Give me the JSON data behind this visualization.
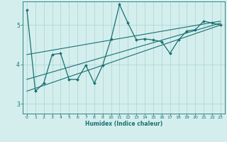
{
  "xlabel": "Humidex (Indice chaleur)",
  "bg_color": "#d4eeee",
  "line_color": "#1a7070",
  "grid_color": "#a8d4d4",
  "xlim": [
    -0.5,
    23.5
  ],
  "ylim": [
    2.75,
    5.6
  ],
  "yticks": [
    3,
    4,
    5
  ],
  "xticks": [
    0,
    1,
    2,
    3,
    4,
    5,
    6,
    7,
    8,
    9,
    10,
    11,
    12,
    13,
    14,
    15,
    16,
    17,
    18,
    19,
    20,
    21,
    22,
    23
  ],
  "line1_x": [
    0,
    1,
    2,
    3,
    4,
    5,
    6,
    7,
    8,
    9,
    10,
    11,
    12,
    13,
    14,
    15,
    16,
    17,
    18,
    19,
    20,
    21,
    22,
    23
  ],
  "line1_y": [
    5.38,
    3.32,
    3.52,
    4.25,
    4.28,
    3.62,
    3.62,
    3.98,
    3.52,
    3.98,
    4.65,
    5.52,
    5.05,
    4.62,
    4.65,
    4.62,
    4.58,
    4.28,
    4.62,
    4.85,
    4.88,
    5.1,
    5.05,
    5.0
  ],
  "line2_x": [
    0,
    23
  ],
  "line2_y": [
    3.32,
    5.0
  ],
  "line3_x": [
    0,
    23
  ],
  "line3_y": [
    3.62,
    5.05
  ],
  "line4_x": [
    0,
    23
  ],
  "line4_y": [
    4.25,
    5.1
  ]
}
